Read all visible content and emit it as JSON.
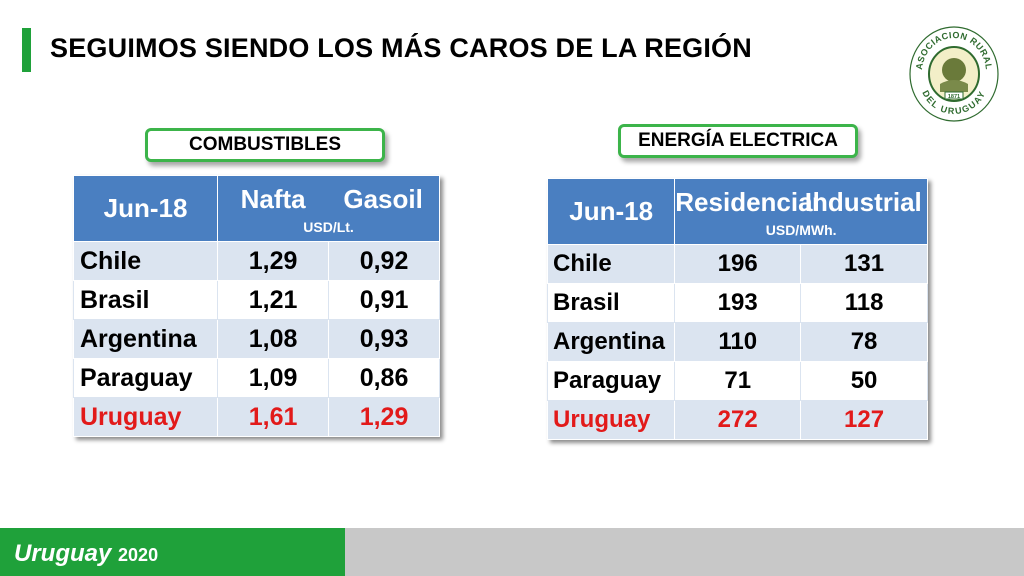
{
  "title": "SEGUIMOS SIENDO LOS MÁS CAROS DE LA REGIÓN",
  "logo": {
    "top_text": "ASOCIACION RURAL",
    "bottom_text": "DEL URUGUAY",
    "year": "1871"
  },
  "combustibles": {
    "label": "COMBUSTIBLES",
    "corner": "Jun-18",
    "col1": "Nafta",
    "col2": "Gasoil",
    "unit": "USD/Lt.",
    "rows": [
      {
        "country": "Chile",
        "v1": "1,29",
        "v2": "0,92"
      },
      {
        "country": "Brasil",
        "v1": "1,21",
        "v2": "0,91"
      },
      {
        "country": "Argentina",
        "v1": "1,08",
        "v2": "0,93"
      },
      {
        "country": "Paraguay",
        "v1": "1,09",
        "v2": "0,86"
      },
      {
        "country": "Uruguay",
        "v1": "1,61",
        "v2": "1,29"
      }
    ]
  },
  "energia": {
    "label": "ENERGÍA ELECTRICA",
    "corner": "Jun-18",
    "col1": "Residencial",
    "col2": "Industrial",
    "unit": "USD/MWh.",
    "rows": [
      {
        "country": "Chile",
        "v1": "196",
        "v2": "131"
      },
      {
        "country": "Brasil",
        "v1": "193",
        "v2": "118"
      },
      {
        "country": "Argentina",
        "v1": "110",
        "v2": "78"
      },
      {
        "country": "Paraguay",
        "v1": "71",
        "v2": "50"
      },
      {
        "country": "Uruguay",
        "v1": "272",
        "v2": "127"
      }
    ]
  },
  "footer": {
    "text": "Uruguay",
    "year": "2020"
  },
  "colors": {
    "green": "#1fa13a",
    "header_blue": "#4a7fc1",
    "row_shade": "#dbe4f0",
    "highlight_red": "#e21a1a"
  }
}
